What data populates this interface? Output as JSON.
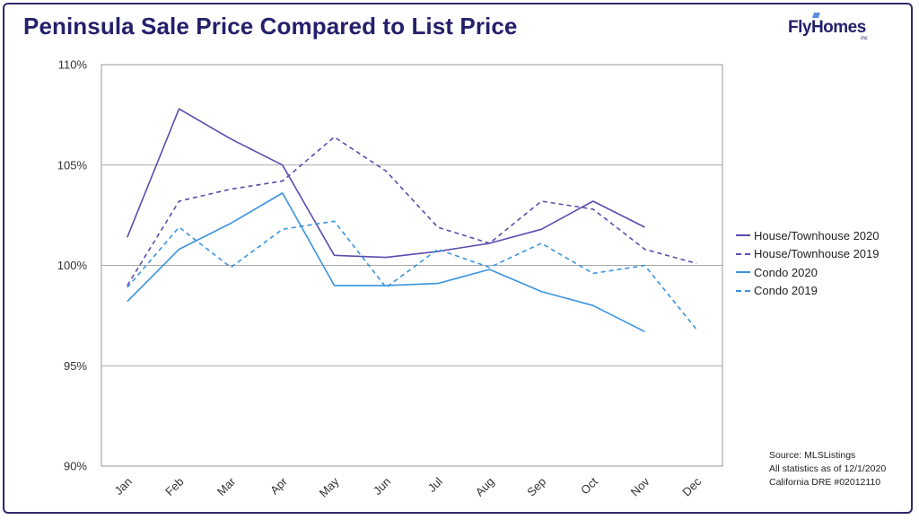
{
  "header": {
    "title": "Peninsula Sale Price Compared to List Price",
    "logo_text": "FlyHomes",
    "logo_suffix": "inc"
  },
  "source_notes": [
    "Source: MLSListings",
    "All statistics as of 12/1/2020",
    "California DRE #02012110"
  ],
  "chart_data": {
    "type": "line",
    "title": "Peninsula Sale Price Compared to List Price",
    "categories": [
      "Jan",
      "Feb",
      "Mar",
      "Apr",
      "May",
      "Jun",
      "Jul",
      "Aug",
      "Sep",
      "Oct",
      "Nov",
      "Dec"
    ],
    "y_ticks": [
      "90%",
      "95%",
      "100%",
      "105%",
      "110%"
    ],
    "ylim": [
      90,
      110
    ],
    "grid": "horizontal",
    "legend_position": "right",
    "series": [
      {
        "name": "House/Townhouse 2020",
        "color": "#5b4cb0",
        "dash": false,
        "values": [
          101.4,
          107.8,
          106.3,
          105.0,
          100.5,
          100.4,
          100.7,
          101.1,
          101.8,
          103.2,
          101.9,
          null
        ]
      },
      {
        "name": "House/Townhouse 2019",
        "color": "#5b4cb0",
        "dash": true,
        "values": [
          99.0,
          103.2,
          103.8,
          104.2,
          106.4,
          104.7,
          101.9,
          101.1,
          103.2,
          102.8,
          100.8,
          100.1
        ]
      },
      {
        "name": "Condo 2020",
        "color": "#3a93e0",
        "dash": false,
        "values": [
          98.2,
          100.8,
          102.1,
          103.6,
          99.0,
          99.0,
          99.1,
          99.8,
          98.7,
          98.0,
          96.7,
          null
        ]
      },
      {
        "name": "Condo 2019",
        "color": "#3a93e0",
        "dash": true,
        "values": [
          98.9,
          101.9,
          99.9,
          101.8,
          102.2,
          98.9,
          100.8,
          99.9,
          101.1,
          99.6,
          100.0,
          96.8
        ]
      }
    ]
  }
}
